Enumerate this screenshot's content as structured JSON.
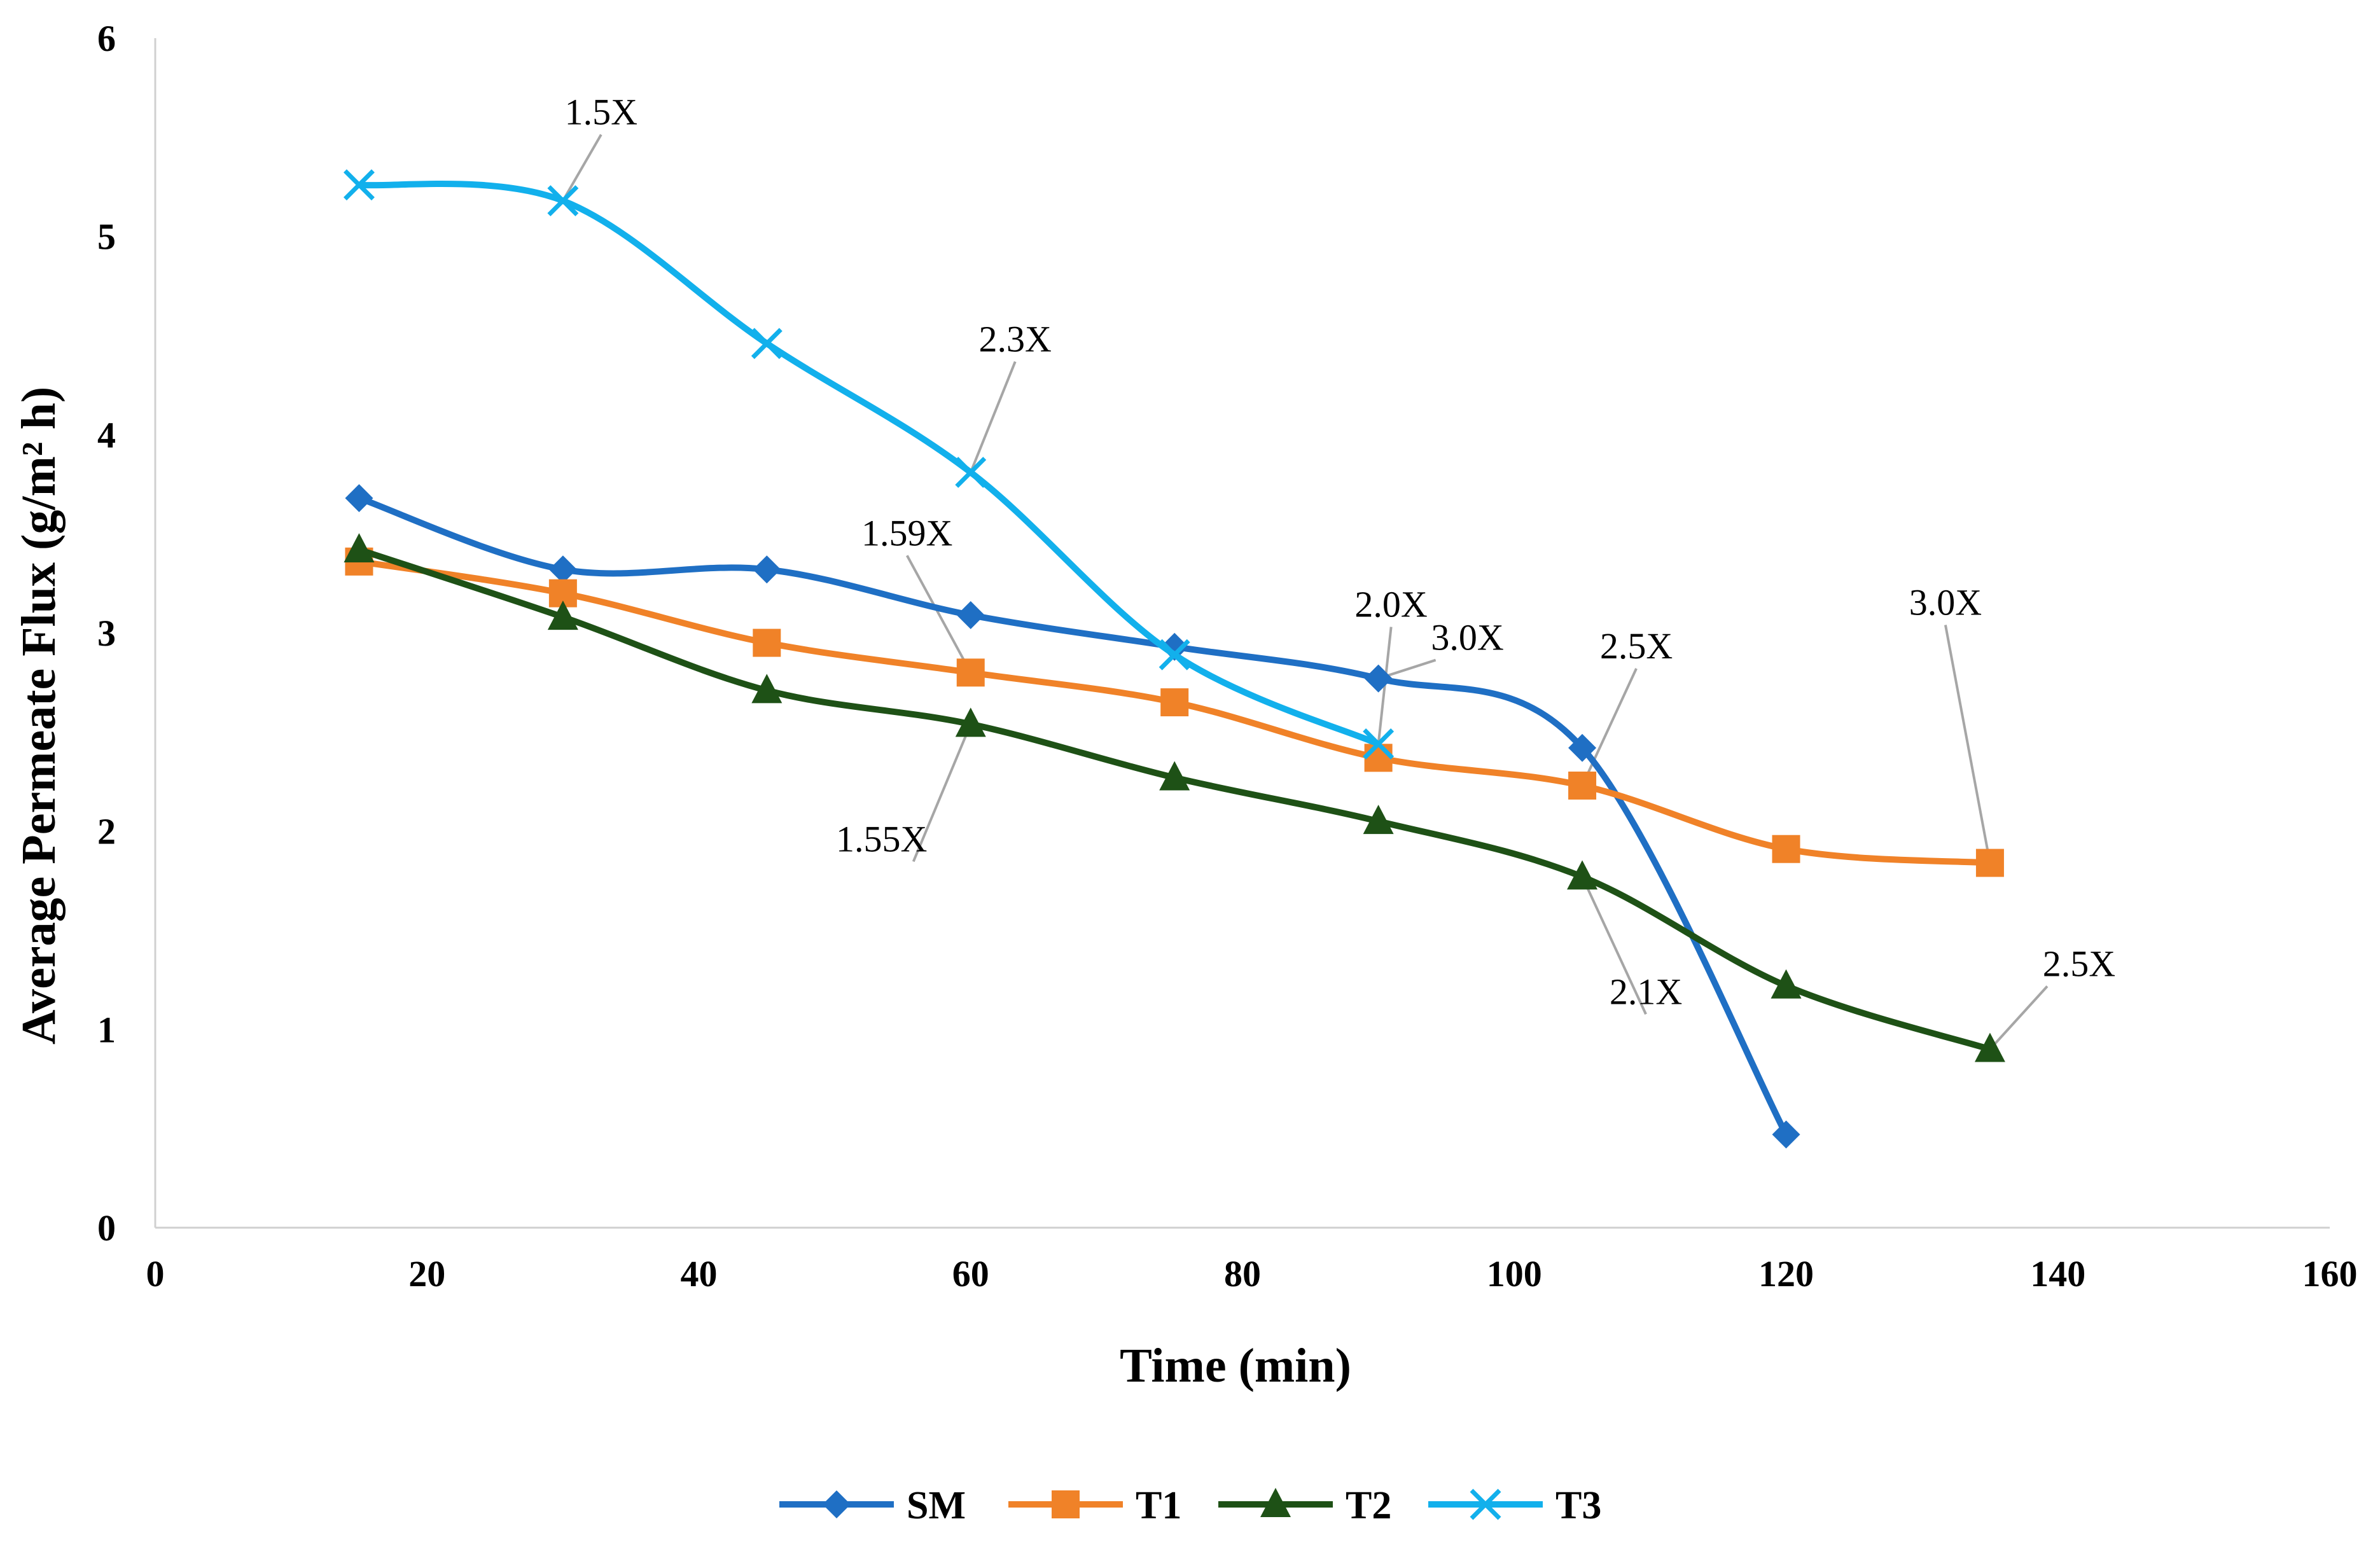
{
  "chart_data": {
    "type": "line",
    "xlabel": "Time (min)",
    "ylabel": "Average Permeate Flux (g/m² h)",
    "xlim": [
      0,
      160
    ],
    "ylim": [
      0,
      6
    ],
    "xticks": [
      0,
      20,
      40,
      60,
      80,
      100,
      120,
      140,
      160
    ],
    "yticks": [
      0,
      1,
      2,
      3,
      4,
      5,
      6
    ],
    "grid": false,
    "legend_position": "bottom",
    "series": [
      {
        "name": "SM",
        "color": "#1F6FC4",
        "marker": "diamond",
        "x": [
          15,
          30,
          45,
          60,
          75,
          90,
          105,
          120
        ],
        "y": [
          3.68,
          3.32,
          3.32,
          3.09,
          2.93,
          2.77,
          2.42,
          0.47
        ]
      },
      {
        "name": "T1",
        "color": "#F08228",
        "marker": "square",
        "x": [
          15,
          30,
          45,
          60,
          75,
          90,
          105,
          120,
          135
        ],
        "y": [
          3.36,
          3.2,
          2.95,
          2.8,
          2.65,
          2.37,
          2.23,
          1.91,
          1.84
        ]
      },
      {
        "name": "T2",
        "color": "#1E5116",
        "marker": "triangle",
        "x": [
          15,
          30,
          45,
          60,
          75,
          90,
          105,
          120,
          135
        ],
        "y": [
          3.42,
          3.08,
          2.71,
          2.54,
          2.27,
          2.05,
          1.77,
          1.22,
          0.9
        ]
      },
      {
        "name": "T3",
        "color": "#12B0EC",
        "marker": "x",
        "x": [
          15,
          30,
          45,
          60,
          75,
          90
        ],
        "y": [
          5.26,
          5.18,
          4.46,
          3.81,
          2.89,
          2.44
        ]
      }
    ],
    "annotations": [
      {
        "text": "1.5X",
        "series": "T3",
        "x": 30,
        "y": 5.18
      },
      {
        "text": "2.3X",
        "series": "T3",
        "x": 60,
        "y": 3.81
      },
      {
        "text": "1.59X",
        "series": "T1",
        "x": 60,
        "y": 2.8
      },
      {
        "text": "1.55X",
        "series": "T2",
        "x": 60,
        "y": 2.54
      },
      {
        "text": "2.0X",
        "series": "T3",
        "x": 90,
        "y": 2.44
      },
      {
        "text": "3.0X",
        "series": "SM",
        "x": 90,
        "y": 2.77
      },
      {
        "text": "2.5X",
        "series": "T1",
        "x": 105,
        "y": 2.23
      },
      {
        "text": "2.1X",
        "series": "T2",
        "x": 105,
        "y": 1.77
      },
      {
        "text": "3.0X",
        "series": "T1",
        "x": 135,
        "y": 1.84
      },
      {
        "text": "2.5X",
        "series": "T2",
        "x": 135,
        "y": 0.9
      }
    ]
  }
}
